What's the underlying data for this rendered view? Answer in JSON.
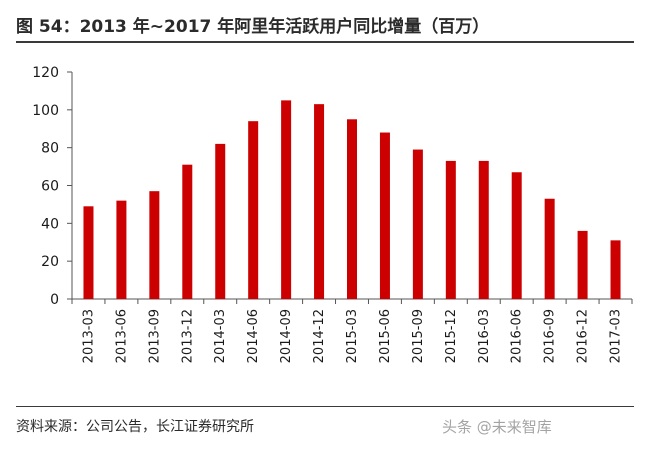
{
  "figure": {
    "title": "图 54：2013 年~2017 年阿里年活跃用户同比增量（百万）",
    "source": "资料来源：公司公告，长江证券研究所",
    "watermark": "头条 @未来智库"
  },
  "colors": {
    "bar": "#cc0000",
    "axis": "#555555",
    "text": "#1a1a1a"
  },
  "chart_data": {
    "type": "bar",
    "title": "",
    "xlabel": "",
    "ylabel": "",
    "ylim": [
      0,
      120
    ],
    "yticks": [
      0,
      20,
      40,
      60,
      80,
      100,
      120
    ],
    "grid": false,
    "categories": [
      "2013-03",
      "2013-06",
      "2013-09",
      "2013-12",
      "2014-03",
      "2014-06",
      "2014-09",
      "2014-12",
      "2015-03",
      "2015-06",
      "2015-09",
      "2015-12",
      "2016-03",
      "2016-06",
      "2016-09",
      "2016-12",
      "2017-03"
    ],
    "values": [
      49,
      52,
      57,
      71,
      82,
      94,
      105,
      103,
      95,
      88,
      79,
      73,
      73,
      67,
      53,
      36,
      31
    ]
  }
}
